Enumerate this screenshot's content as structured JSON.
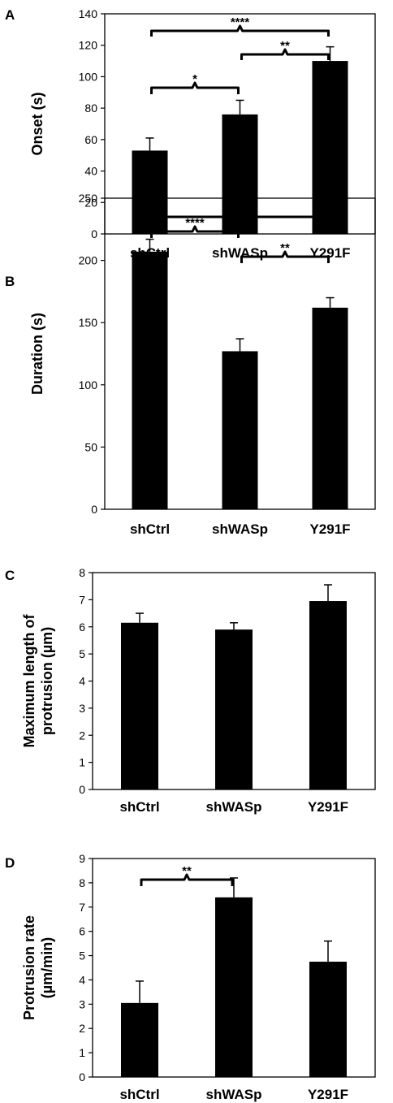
{
  "chart_data": [
    {
      "type": "bar",
      "panel": "A",
      "categories": [
        "shCtrl",
        "shWASp",
        "Y291F"
      ],
      "values": [
        53,
        76,
        110
      ],
      "errors": [
        8,
        9,
        9
      ],
      "ylabel": "Onset (s)",
      "ylim": [
        0,
        140
      ],
      "yticks": [
        0,
        20,
        40,
        60,
        80,
        100,
        120,
        140
      ],
      "grid": false,
      "significance": [
        {
          "from": 0,
          "to": 1,
          "label": "*"
        },
        {
          "from": 1,
          "to": 2,
          "label": "**"
        },
        {
          "from": 0,
          "to": 2,
          "label": "****"
        }
      ]
    },
    {
      "type": "bar",
      "panel": "B",
      "categories": [
        "shCtrl",
        "shWASp",
        "Y291F"
      ],
      "values": [
        207,
        127,
        162
      ],
      "errors": [
        10,
        10,
        8
      ],
      "ylabel": "Duration (s)",
      "ylim": [
        0,
        250
      ],
      "yticks": [
        0,
        50,
        100,
        150,
        200,
        250
      ],
      "grid": false,
      "significance": [
        {
          "from": 0,
          "to": 1,
          "label": "****"
        },
        {
          "from": 1,
          "to": 2,
          "label": "**"
        },
        {
          "from": 0,
          "to": 2,
          "label": "***"
        }
      ]
    },
    {
      "type": "bar",
      "panel": "C",
      "categories": [
        "shCtrl",
        "shWASp",
        "Y291F"
      ],
      "values": [
        6.15,
        5.9,
        6.95
      ],
      "errors": [
        0.35,
        0.25,
        0.6
      ],
      "ylabel": "Maximum length of protrusion (µm)",
      "ylabel_lines": [
        "Maximum length of",
        "protrusion (µm)"
      ],
      "ylim": [
        0,
        8
      ],
      "yticks": [
        0,
        1,
        2,
        3,
        4,
        5,
        6,
        7,
        8
      ],
      "grid": false,
      "significance": []
    },
    {
      "type": "bar",
      "panel": "D",
      "categories": [
        "shCtrl",
        "shWASp",
        "Y291F"
      ],
      "values": [
        3.05,
        7.4,
        4.75
      ],
      "errors": [
        0.9,
        0.8,
        0.85
      ],
      "ylabel": "Protrusion rate (µm/min)",
      "ylabel_lines": [
        "Protrusion rate",
        "(µm/min)"
      ],
      "ylim": [
        0,
        9
      ],
      "yticks": [
        0,
        1,
        2,
        3,
        4,
        5,
        6,
        7,
        8,
        9
      ],
      "grid": false,
      "significance": [
        {
          "from": 0,
          "to": 1,
          "label": "**"
        }
      ]
    }
  ]
}
